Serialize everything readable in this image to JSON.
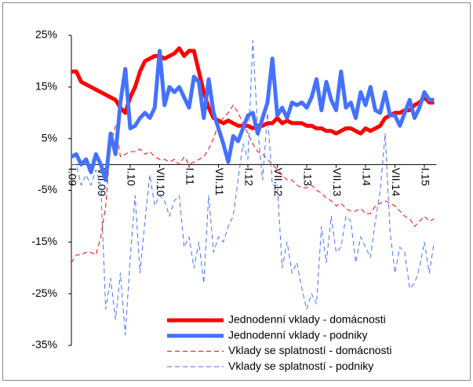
{
  "chart_data": {
    "type": "line",
    "categories": [
      "I.09",
      null,
      null,
      null,
      null,
      null,
      "VII.09",
      null,
      null,
      null,
      null,
      null,
      "I.10",
      null,
      null,
      null,
      null,
      null,
      "VII.10",
      null,
      null,
      null,
      null,
      null,
      "I.11",
      null,
      null,
      null,
      null,
      null,
      "VII.11",
      null,
      null,
      null,
      null,
      null,
      "I.12",
      null,
      null,
      null,
      null,
      null,
      "VII.12",
      null,
      null,
      null,
      null,
      null,
      "I.13",
      null,
      null,
      null,
      null,
      null,
      "VII.13",
      null,
      null,
      null,
      null,
      null,
      "I.14",
      null,
      null,
      null,
      null,
      null,
      "VII.14",
      null,
      null,
      null,
      null,
      null,
      "I.15",
      null,
      null
    ],
    "series": [
      {
        "name": "Jednodenní vklady - domácnosti",
        "color": "#ff0000",
        "style": "solid",
        "width": 5,
        "values": [
          18,
          18,
          16,
          15.5,
          15,
          14.5,
          14,
          13.5,
          13,
          12.5,
          11,
          10,
          13,
          15,
          18,
          20,
          20.5,
          21,
          21,
          20.5,
          21,
          21.5,
          22.5,
          21,
          22,
          22,
          18,
          14,
          11,
          9,
          8.5,
          8,
          8.5,
          8,
          7.5,
          7.5,
          7.5,
          7,
          7.5,
          7.5,
          8,
          8,
          9,
          8,
          8.5,
          8,
          8,
          8,
          7.5,
          7.5,
          7,
          7,
          6.5,
          6.5,
          6,
          6.5,
          7,
          7,
          6.5,
          6,
          7,
          6.5,
          7,
          7.5,
          9,
          9.5,
          10,
          10,
          10.5,
          10.5,
          11.5,
          12,
          13,
          12,
          12
        ]
      },
      {
        "name": "Jednodenní vklady - podniky",
        "color": "#4472ff",
        "style": "solid",
        "width": 5,
        "values": [
          1.5,
          2,
          0,
          1,
          -1.5,
          2,
          0,
          -3,
          6,
          2,
          12,
          18.5,
          7,
          7.5,
          9,
          10,
          9,
          11,
          22,
          11.5,
          15,
          14,
          15,
          13,
          11,
          17,
          16,
          9,
          16.5,
          10,
          7,
          4,
          0.5,
          5.5,
          4.5,
          7,
          9.5,
          10,
          6,
          9,
          12,
          20.5,
          9.5,
          11,
          9,
          12,
          11.5,
          12,
          11,
          13,
          16.5,
          10.5,
          16,
          12.5,
          10.5,
          18,
          11,
          12,
          9,
          14,
          11.5,
          15,
          10.5,
          10,
          14,
          9.5,
          9.5,
          7.5,
          10,
          12.5,
          9,
          11,
          14,
          12.5,
          12.5
        ]
      },
      {
        "name": "Vklady se splatností - domácnosti",
        "color": "#ff0000",
        "style": "dashed",
        "width": 1,
        "values": [
          -19,
          -17.5,
          -17.5,
          -17,
          -17,
          -17.5,
          -14,
          -8,
          4,
          7.5,
          1.5,
          2,
          2.5,
          2.5,
          3,
          2,
          2.5,
          1.5,
          1,
          1,
          0.5,
          1,
          0,
          1.5,
          0,
          0.5,
          1,
          1.5,
          3,
          5,
          8,
          9,
          10,
          11.5,
          10,
          8,
          6,
          4,
          2.5,
          2,
          1,
          0,
          -1,
          -2,
          -3,
          -3,
          -4,
          -4.5,
          -4.5,
          -4,
          -5,
          -5.5,
          -6.5,
          -7,
          -8,
          -7.5,
          -8.5,
          -9,
          -9,
          -8.5,
          -9.5,
          -9.5,
          -8,
          -7.5,
          -7,
          -7.5,
          -8,
          -9,
          -10,
          -10.5,
          -12,
          -11,
          -10,
          -11,
          -10.5
        ]
      },
      {
        "name": "Vklady se splatností - podniky",
        "color": "#4472ff",
        "style": "dashed",
        "width": 1,
        "values": [
          0,
          0,
          -4,
          -2,
          -4,
          -1,
          -4,
          -28,
          -22,
          -30,
          -21,
          -33,
          -18,
          -6,
          -21,
          -11,
          -2,
          -8,
          -6,
          -7,
          -10,
          -7,
          -6,
          -16,
          -14,
          -20,
          -15,
          -23,
          -6,
          -17,
          -14,
          -15,
          -12,
          -10,
          -3,
          4,
          1,
          24,
          7,
          -3,
          10,
          -4,
          -4,
          -20,
          -15,
          -21,
          -19,
          -24,
          -28,
          -25,
          -27,
          -12,
          -19,
          -10,
          -17,
          -16,
          -10,
          -11,
          -19,
          -14,
          -16,
          -18,
          -11,
          -5,
          6,
          -13,
          -21,
          -16,
          -17,
          -24,
          -23,
          -20,
          -15,
          -21,
          -15
        ]
      }
    ],
    "ylim": [
      -35,
      25
    ],
    "yticks": [
      {
        "value": -35,
        "label": "-35%"
      },
      {
        "value": -25,
        "label": "-25%"
      },
      {
        "value": -15,
        "label": "-15%"
      },
      {
        "value": -5,
        "label": "-5%"
      },
      {
        "value": 5,
        "label": "5%"
      },
      {
        "value": 15,
        "label": "15%"
      },
      {
        "value": 25,
        "label": "25%"
      }
    ],
    "legend": "lower center"
  }
}
